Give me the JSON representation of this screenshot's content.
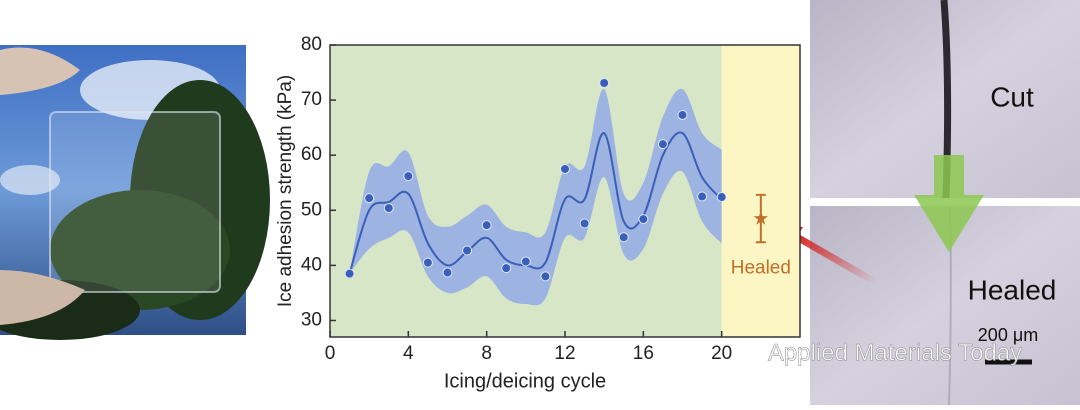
{
  "chart_data": {
    "type": "line",
    "ylabel": "Ice adhesion strength (kPa)",
    "xlabel": "Icing/deicing cycle",
    "xlim": [
      0,
      24
    ],
    "xticks": [
      0,
      4,
      8,
      12,
      16,
      20
    ],
    "ylim": [
      27,
      80
    ],
    "yticks": [
      30,
      40,
      50,
      60,
      70,
      80
    ],
    "regions": [
      {
        "from": 0,
        "to": 20,
        "color": "#d6e6c6"
      },
      {
        "from": 20,
        "to": 24,
        "color": "#fbf6c4"
      }
    ],
    "color": "#3a5fb8",
    "x": [
      1,
      2,
      3,
      4,
      5,
      6,
      7,
      8,
      9,
      10,
      11,
      12,
      13,
      14,
      15,
      16,
      17,
      18,
      19,
      20
    ],
    "values": [
      38.5,
      52.2,
      50.4,
      56.2,
      40.5,
      38.7,
      42.7,
      47.3,
      39.5,
      40.7,
      38,
      57.5,
      47.6,
      73.1,
      45.1,
      48.4,
      62,
      67.3,
      52.5,
      52.4
    ],
    "fit": {
      "color": "#8ea6e8",
      "values": [
        38.5,
        50,
        51.5,
        53,
        44,
        40,
        42.5,
        45,
        41,
        40,
        40.5,
        52,
        52,
        64,
        48,
        49,
        60,
        64,
        56,
        52
      ],
      "upper": [
        38.5,
        57,
        58,
        60.5,
        49,
        47,
        49,
        51,
        47,
        46,
        46,
        58,
        58,
        72,
        53,
        55,
        67,
        72,
        64,
        61
      ],
      "lower": [
        38.5,
        43,
        45,
        46,
        38,
        35,
        36,
        38,
        34,
        33,
        34,
        45,
        45,
        56,
        42,
        43,
        53,
        57,
        48,
        44
      ]
    },
    "healed": {
      "x": 22,
      "value": 48.5,
      "error": 4.3,
      "label": "Healed",
      "color": "#c0702a"
    }
  },
  "micrograph": {
    "top_label": "Cut",
    "bottom_label": "Healed",
    "scale_bar": "200 μm"
  },
  "watermark": "Applied Materials Today"
}
